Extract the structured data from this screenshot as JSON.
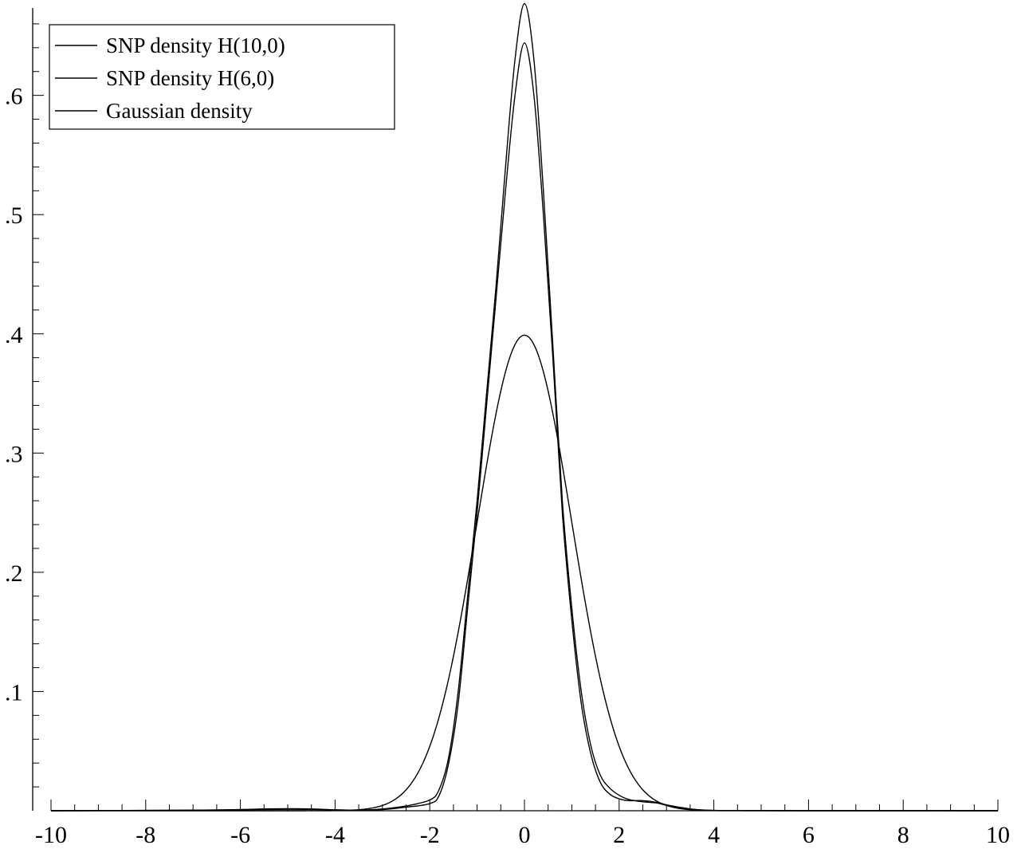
{
  "chart_data": {
    "type": "line",
    "xlim": [
      -10,
      10
    ],
    "ylim": [
      0,
      0.68
    ],
    "x_ticks": [
      {
        "value": -10,
        "label": "-10"
      },
      {
        "value": -8,
        "label": "-8"
      },
      {
        "value": -6,
        "label": "-6"
      },
      {
        "value": -4,
        "label": "-4"
      },
      {
        "value": -2,
        "label": "-2"
      },
      {
        "value": 0,
        "label": "0"
      },
      {
        "value": 2,
        "label": "2"
      },
      {
        "value": 4,
        "label": "4"
      },
      {
        "value": 6,
        "label": "6"
      },
      {
        "value": 8,
        "label": "8"
      },
      {
        "value": 10,
        "label": "10"
      }
    ],
    "y_ticks": [
      {
        "value": 0.1,
        "label": ".1"
      },
      {
        "value": 0.2,
        "label": ".2"
      },
      {
        "value": 0.3,
        "label": ".3"
      },
      {
        "value": 0.4,
        "label": ".4"
      },
      {
        "value": 0.5,
        "label": ".5"
      },
      {
        "value": 0.6,
        "label": ".6"
      }
    ],
    "legend_position": "top-left",
    "grid": false,
    "line_color": "#000000",
    "series": [
      {
        "name": "SNP density H(10,0)",
        "points": [
          [
            -10,
            0
          ],
          [
            -7,
            0.0005
          ],
          [
            -6,
            0.001
          ],
          [
            -5.5,
            0.0015
          ],
          [
            -5,
            0.0017
          ],
          [
            -4.5,
            0.0015
          ],
          [
            -4,
            0.0008
          ],
          [
            -3.5,
            0.0005
          ],
          [
            -3,
            0.0015
          ],
          [
            -2.5,
            0.004
          ],
          [
            -2,
            0.009
          ],
          [
            -1.8,
            0.018
          ],
          [
            -1.6,
            0.045
          ],
          [
            -1.4,
            0.1
          ],
          [
            -1.2,
            0.18
          ],
          [
            -1,
            0.26
          ],
          [
            -0.8,
            0.35
          ],
          [
            -0.6,
            0.44
          ],
          [
            -0.4,
            0.54
          ],
          [
            -0.2,
            0.63
          ],
          [
            0,
            0.677
          ],
          [
            0.2,
            0.63
          ],
          [
            0.4,
            0.52
          ],
          [
            0.6,
            0.39
          ],
          [
            0.8,
            0.26
          ],
          [
            1,
            0.17
          ],
          [
            1.2,
            0.1
          ],
          [
            1.4,
            0.055
          ],
          [
            1.6,
            0.03
          ],
          [
            1.8,
            0.019
          ],
          [
            2,
            0.013
          ],
          [
            2.2,
            0.0095
          ],
          [
            2.5,
            0.0075
          ],
          [
            2.8,
            0.0065
          ],
          [
            3,
            0.0045
          ],
          [
            3.3,
            0.0025
          ],
          [
            3.6,
            0.001
          ],
          [
            4,
            0.0003
          ],
          [
            5,
            0.0001
          ],
          [
            10,
            0
          ]
        ]
      },
      {
        "name": "SNP density H(6,0)",
        "points": [
          [
            -10,
            0
          ],
          [
            -7,
            0.0004
          ],
          [
            -6,
            0.0008
          ],
          [
            -5,
            0.0012
          ],
          [
            -4.5,
            0.0011
          ],
          [
            -4,
            0.0007
          ],
          [
            -3.5,
            0.0005
          ],
          [
            -3,
            0.001
          ],
          [
            -2.5,
            0.003
          ],
          [
            -2,
            0.006
          ],
          [
            -1.8,
            0.013
          ],
          [
            -1.6,
            0.04
          ],
          [
            -1.4,
            0.09
          ],
          [
            -1.2,
            0.17
          ],
          [
            -1,
            0.25
          ],
          [
            -0.8,
            0.34
          ],
          [
            -0.6,
            0.43
          ],
          [
            -0.4,
            0.52
          ],
          [
            -0.2,
            0.6
          ],
          [
            0,
            0.644
          ],
          [
            0.2,
            0.6
          ],
          [
            0.4,
            0.5
          ],
          [
            0.6,
            0.38
          ],
          [
            0.8,
            0.25
          ],
          [
            1,
            0.16
          ],
          [
            1.2,
            0.09
          ],
          [
            1.4,
            0.048
          ],
          [
            1.6,
            0.024
          ],
          [
            1.8,
            0.014
          ],
          [
            2,
            0.01
          ],
          [
            2.2,
            0.0085
          ],
          [
            2.5,
            0.0085
          ],
          [
            2.8,
            0.007
          ],
          [
            3,
            0.005
          ],
          [
            3.3,
            0.0028
          ],
          [
            3.6,
            0.0011
          ],
          [
            4,
            0.0003
          ],
          [
            5,
            0.0001
          ],
          [
            10,
            0
          ]
        ]
      },
      {
        "name": "Gaussian density",
        "function": "normal_pdf",
        "mean": 0,
        "sd": 1
      }
    ]
  }
}
